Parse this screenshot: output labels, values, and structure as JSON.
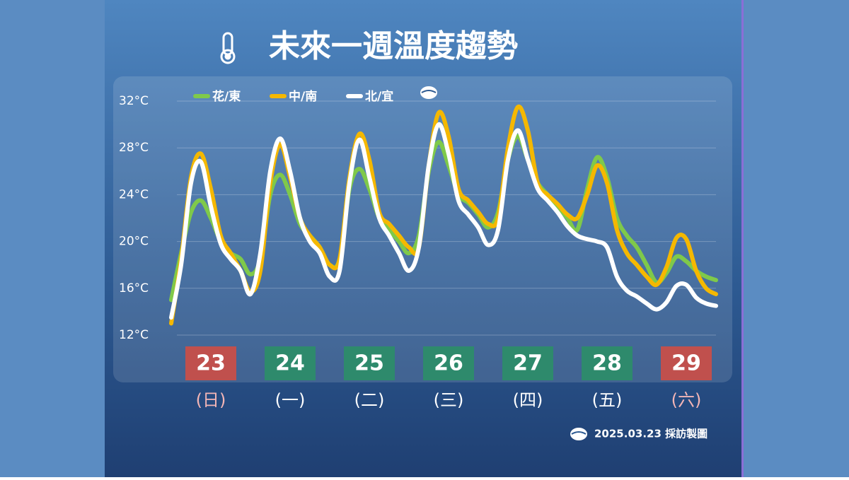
{
  "chart_data": {
    "type": "line",
    "title": "未來一週溫度趨勢",
    "source": "2025.03.23 採訪製圖",
    "categories": [
      null,
      null,
      null,
      null,
      "23",
      null,
      null,
      null,
      null,
      null,
      null,
      null,
      "24",
      null,
      null,
      null,
      null,
      null,
      null,
      null,
      "25",
      null,
      null,
      null,
      null,
      null,
      null,
      null,
      "26",
      null,
      null,
      null,
      null,
      null,
      null,
      null,
      "27",
      null,
      null,
      null,
      null,
      null,
      null,
      null,
      "28",
      null,
      null,
      null,
      null,
      null,
      null,
      null,
      "29",
      null,
      null,
      null
    ],
    "weekdays": [
      "(日)",
      "(一)",
      "(二)",
      "(三)",
      "(四)",
      "(五)",
      "(六)"
    ],
    "day_colors": [
      "#c0504d",
      "#2e8a6c",
      "#2e8a6c",
      "#2e8a6c",
      "#2e8a6c",
      "#2e8a6c",
      "#c0504d"
    ],
    "weekday_colors": [
      "#f4b6b6",
      "#ffffff",
      "#ffffff",
      "#ffffff",
      "#ffffff",
      "#ffffff",
      "#f4b6b6"
    ],
    "ylim": [
      12,
      32
    ],
    "yticks": [
      {
        "value": 12,
        "label": "12°C"
      },
      {
        "value": 16,
        "label": "16°C"
      },
      {
        "value": 20,
        "label": "20°C"
      },
      {
        "value": 24,
        "label": "24°C"
      },
      {
        "value": 28,
        "label": "28°C"
      },
      {
        "value": 32,
        "label": "32°C"
      }
    ],
    "grid": true,
    "series": [
      {
        "name": "花/東",
        "color": "#7fc94a",
        "values": [
          15,
          19,
          22.5,
          23.5,
          22,
          20,
          19,
          18.5,
          17.2,
          18.5,
          24,
          25.7,
          24,
          21.5,
          20.5,
          19.5,
          18,
          18.5,
          24.5,
          26.2,
          24.5,
          22,
          21,
          20,
          19,
          20.5,
          26,
          28.5,
          26.5,
          24,
          23.3,
          22.3,
          21.2,
          22.5,
          27,
          29,
          27,
          25,
          24,
          23,
          22,
          21,
          24.5,
          27.2,
          25.5,
          22,
          20.5,
          19.5,
          18,
          16.5,
          17.3,
          18.7,
          18.3,
          17.5,
          17,
          16.7
        ]
      },
      {
        "name": "中/南",
        "color": "#f5b800",
        "values": [
          13,
          18.5,
          25.5,
          27.5,
          24.5,
          20.5,
          19,
          17.5,
          15.7,
          17.5,
          25,
          28.3,
          25.5,
          22,
          20.5,
          19.5,
          18,
          18.5,
          25.5,
          29.2,
          27,
          22.5,
          21.5,
          20.5,
          19.5,
          19.5,
          26.5,
          31,
          29,
          24.5,
          23.5,
          22.5,
          21.5,
          22,
          28,
          31.5,
          29.5,
          25,
          24,
          23.2,
          22.3,
          22,
          24,
          26.5,
          25,
          21,
          19,
          18,
          17,
          16.3,
          17.8,
          20.3,
          20.2,
          17.5,
          16,
          15.5
        ]
      },
      {
        "name": "北/宜",
        "color": "#ffffff",
        "values": [
          13.5,
          18,
          25,
          26.8,
          23,
          19.8,
          18.5,
          17.5,
          15.5,
          19,
          26,
          28.8,
          26,
          22,
          20,
          19,
          17,
          17.5,
          25,
          28.7,
          25.5,
          22,
          20.5,
          19,
          17.5,
          19.5,
          26.5,
          30,
          27.5,
          23.5,
          22.3,
          21.2,
          19.7,
          21,
          27,
          29.5,
          27,
          24.5,
          23.5,
          22.5,
          21.3,
          20.5,
          20.2,
          20,
          19.5,
          17,
          15.8,
          15.3,
          14.7,
          14.2,
          14.8,
          16.2,
          16.3,
          15.2,
          14.7,
          14.5
        ]
      }
    ]
  }
}
